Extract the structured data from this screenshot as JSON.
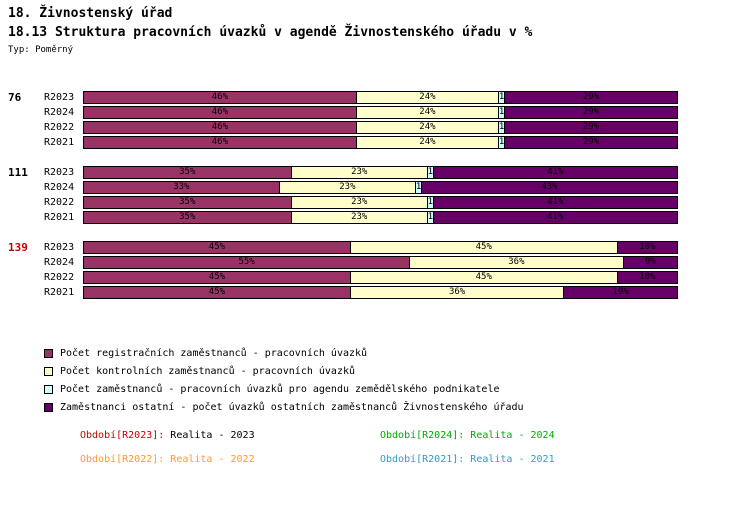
{
  "header": {
    "title": "18. Živnostenský úřad",
    "subtitle": "18.13 Struktura pracovních úvazků v agendě Živnostenského úřadu v %",
    "type_label": "Typ: Poměrný"
  },
  "chart_data": {
    "type": "bar",
    "stacked": true,
    "orientation": "horizontal",
    "unit": "%",
    "xlim": [
      0,
      100
    ],
    "series": [
      {
        "name": "Počet registračních zaměstnanců - pracovních úvazků",
        "color": "#993366"
      },
      {
        "name": "Počet kontrolních zaměstnanců - pracovních úvazků",
        "color": "#FFFFCC"
      },
      {
        "name": "Počet zaměstnanců - pracovních úvazků pro agendu zemědělského podnikatele",
        "color": "#CCFFFF"
      },
      {
        "name": "Zaměstnanci ostatní - počet úvazků ostatních zaměstnanců Živnostenského úřadu",
        "color": "#660066"
      }
    ],
    "groups": [
      {
        "label": "76",
        "label_color": "#000000",
        "rows": [
          {
            "label": "R2023",
            "values": [
              46,
              24,
              1,
              29
            ],
            "labels": [
              "46%",
              "24%",
              "1",
              "29%"
            ]
          },
          {
            "label": "R2024",
            "values": [
              46,
              24,
              1,
              29
            ],
            "labels": [
              "46%",
              "24%",
              "1",
              "29%"
            ]
          },
          {
            "label": "R2022",
            "values": [
              46,
              24,
              1,
              29
            ],
            "labels": [
              "46%",
              "24%",
              "1",
              "29%"
            ]
          },
          {
            "label": "R2021",
            "values": [
              46,
              24,
              1,
              29
            ],
            "labels": [
              "46%",
              "24%",
              "1",
              "29%"
            ]
          }
        ]
      },
      {
        "label": "111",
        "label_color": "#000000",
        "rows": [
          {
            "label": "R2023",
            "values": [
              35,
              23,
              1,
              41
            ],
            "labels": [
              "35%",
              "23%",
              "1",
              "41%"
            ]
          },
          {
            "label": "R2024",
            "values": [
              33,
              23,
              1,
              43
            ],
            "labels": [
              "33%",
              "23%",
              "1",
              "43%"
            ]
          },
          {
            "label": "R2022",
            "values": [
              35,
              23,
              1,
              41
            ],
            "labels": [
              "35%",
              "23%",
              "1",
              "41%"
            ]
          },
          {
            "label": "R2021",
            "values": [
              35,
              23,
              1,
              41
            ],
            "labels": [
              "35%",
              "23%",
              "1",
              "41%"
            ]
          }
        ]
      },
      {
        "label": "139",
        "label_color": "#CC0000",
        "rows": [
          {
            "label": "R2023",
            "values": [
              45,
              45,
              0,
              10
            ],
            "labels": [
              "45%",
              "45%",
              "",
              "10%"
            ]
          },
          {
            "label": "R2024",
            "values": [
              55,
              36,
              0,
              9
            ],
            "labels": [
              "55%",
              "36%",
              "",
              "9%"
            ]
          },
          {
            "label": "R2022",
            "values": [
              45,
              45,
              0,
              10
            ],
            "labels": [
              "45%",
              "45%",
              "",
              "10%"
            ]
          },
          {
            "label": "R2021",
            "values": [
              45,
              36,
              0,
              19
            ],
            "labels": [
              "45%",
              "36%",
              "",
              "19%"
            ]
          }
        ]
      }
    ]
  },
  "footer": {
    "items": [
      {
        "label": "Období[R2023]:",
        "value": "Realita - 2023",
        "label_color": "#CC0000",
        "value_color": "#000000"
      },
      {
        "label": "Období[R2024]:",
        "value": "Realita - 2024",
        "label_color": "#00AA00",
        "value_color": "#00AA00"
      },
      {
        "label": "Období[R2022]:",
        "value": "Realita - 2022",
        "label_color": "#FF9933",
        "value_color": "#FF9933"
      },
      {
        "label": "Období[R2021]:",
        "value": "Realita - 2021",
        "label_color": "#3399CC",
        "value_color": "#3399CC"
      }
    ]
  }
}
